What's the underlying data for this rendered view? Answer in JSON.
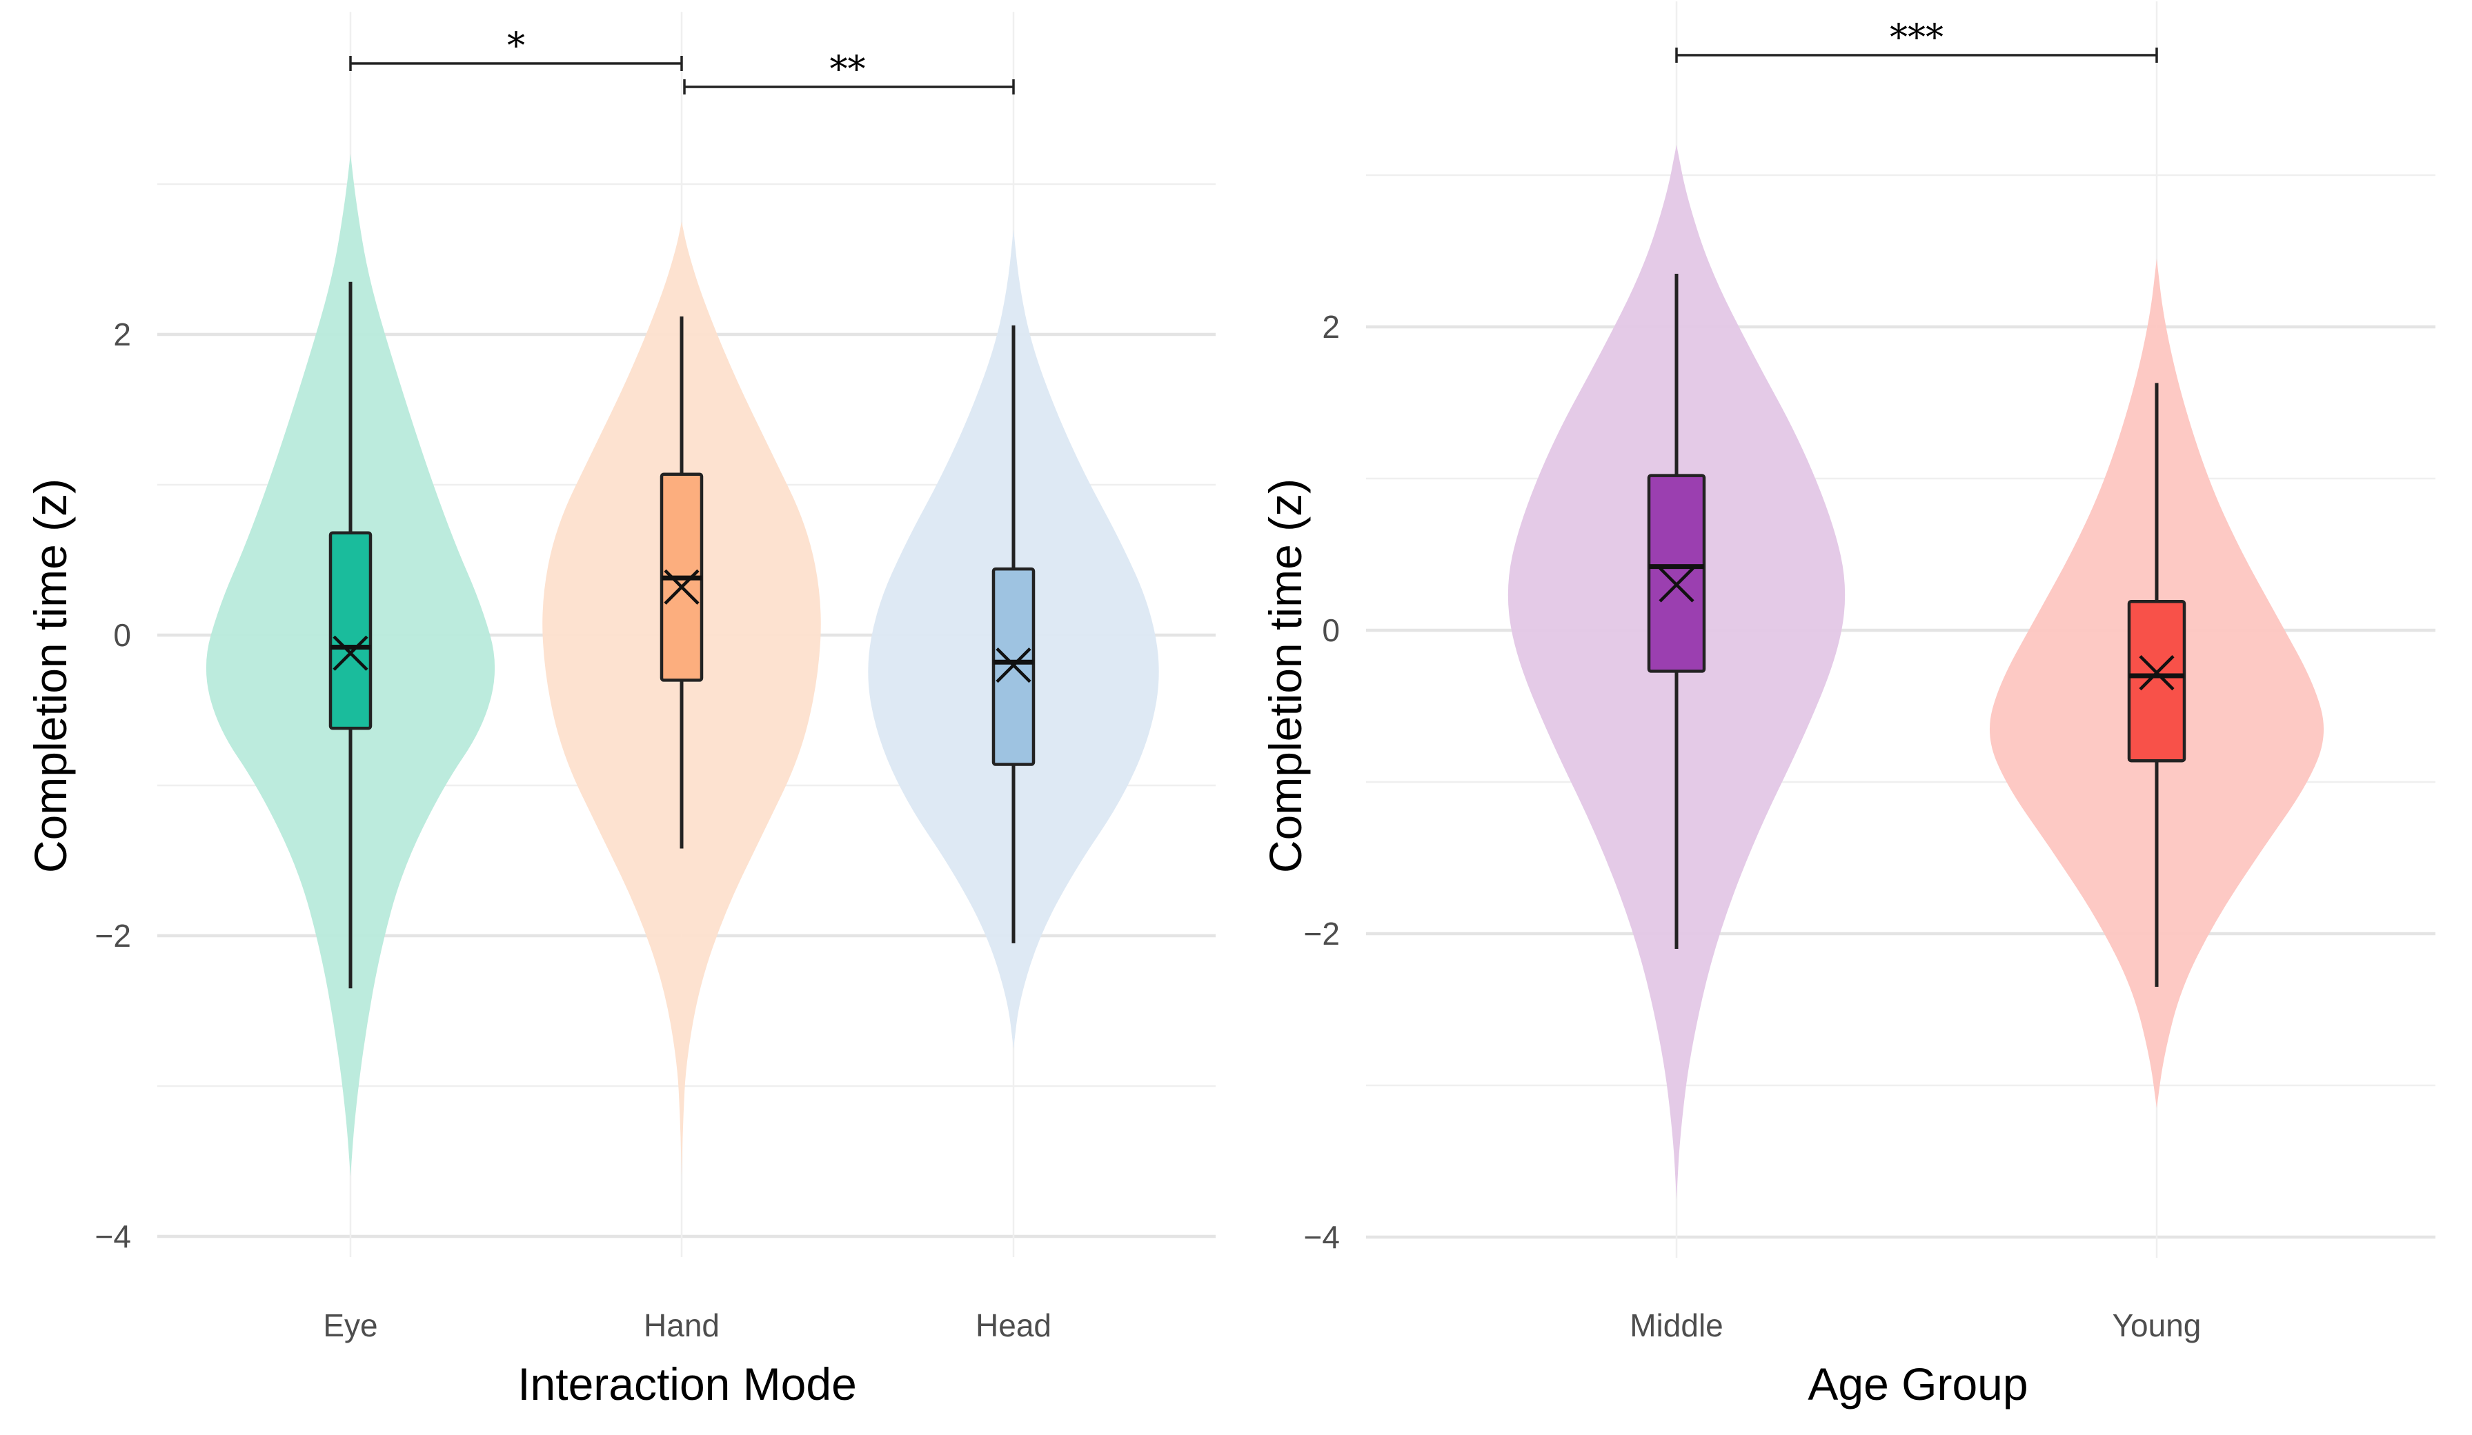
{
  "chart_data": [
    {
      "type": "violin",
      "xlabel": "Interaction Mode",
      "ylabel": "Completion  time (z)",
      "categories": [
        "Eye",
        "Hand",
        "Head"
      ],
      "ylim": [
        -4.6,
        4.1
      ],
      "y_ticks": [
        -4,
        -2,
        0,
        2
      ],
      "grid": true,
      "series": [
        {
          "category": "Eye",
          "fill_color": "#1abc9c",
          "violin_color": "#b8eadb",
          "whisker_low": -2.35,
          "q1": -0.62,
          "median": -0.08,
          "q3": 0.68,
          "whisker_high": 2.35,
          "mean": -0.12,
          "violin_range": [
            -3.6,
            3.2
          ]
        },
        {
          "category": "Hand",
          "fill_color": "#fcae7e",
          "violin_color": "#fde0cd",
          "whisker_low": -1.42,
          "q1": -0.3,
          "median": 0.38,
          "q3": 1.07,
          "whisker_high": 2.12,
          "mean": 0.32,
          "violin_range": [
            -3.6,
            2.75
          ]
        },
        {
          "category": "Head",
          "fill_color": "#9ec3e1",
          "violin_color": "#dce8f3",
          "whisker_low": -2.05,
          "q1": -0.86,
          "median": -0.18,
          "q3": 0.44,
          "whisker_high": 2.06,
          "mean": -0.2,
          "violin_range": [
            -2.75,
            2.7
          ]
        }
      ],
      "significance": [
        {
          "from": "Eye",
          "to": "Hand",
          "label": "*"
        },
        {
          "from": "Hand",
          "to": "Head",
          "label": "**"
        }
      ]
    },
    {
      "type": "violin",
      "xlabel": "Age Group",
      "ylabel": "Completion  time (z)",
      "categories": [
        "Middle",
        "Young"
      ],
      "ylim": [
        -4.6,
        4.1
      ],
      "y_ticks": [
        -4,
        -2,
        0,
        2
      ],
      "grid": true,
      "series": [
        {
          "category": "Middle",
          "fill_color": "#9b3fb0",
          "violin_color": "#e3c7e6",
          "whisker_low": -2.1,
          "q1": -0.27,
          "median": 0.42,
          "q3": 1.02,
          "whisker_high": 2.35,
          "mean": 0.3,
          "violin_range": [
            -3.75,
            3.2
          ]
        },
        {
          "category": "Young",
          "fill_color": "#f85149",
          "violin_color": "#fdc6c1",
          "whisker_low": -2.35,
          "q1": -0.86,
          "median": -0.3,
          "q3": 0.19,
          "whisker_high": 1.63,
          "mean": -0.28,
          "violin_range": [
            -3.15,
            2.45
          ]
        }
      ],
      "significance": [
        {
          "from": "Middle",
          "to": "Young",
          "label": "***"
        }
      ]
    }
  ]
}
